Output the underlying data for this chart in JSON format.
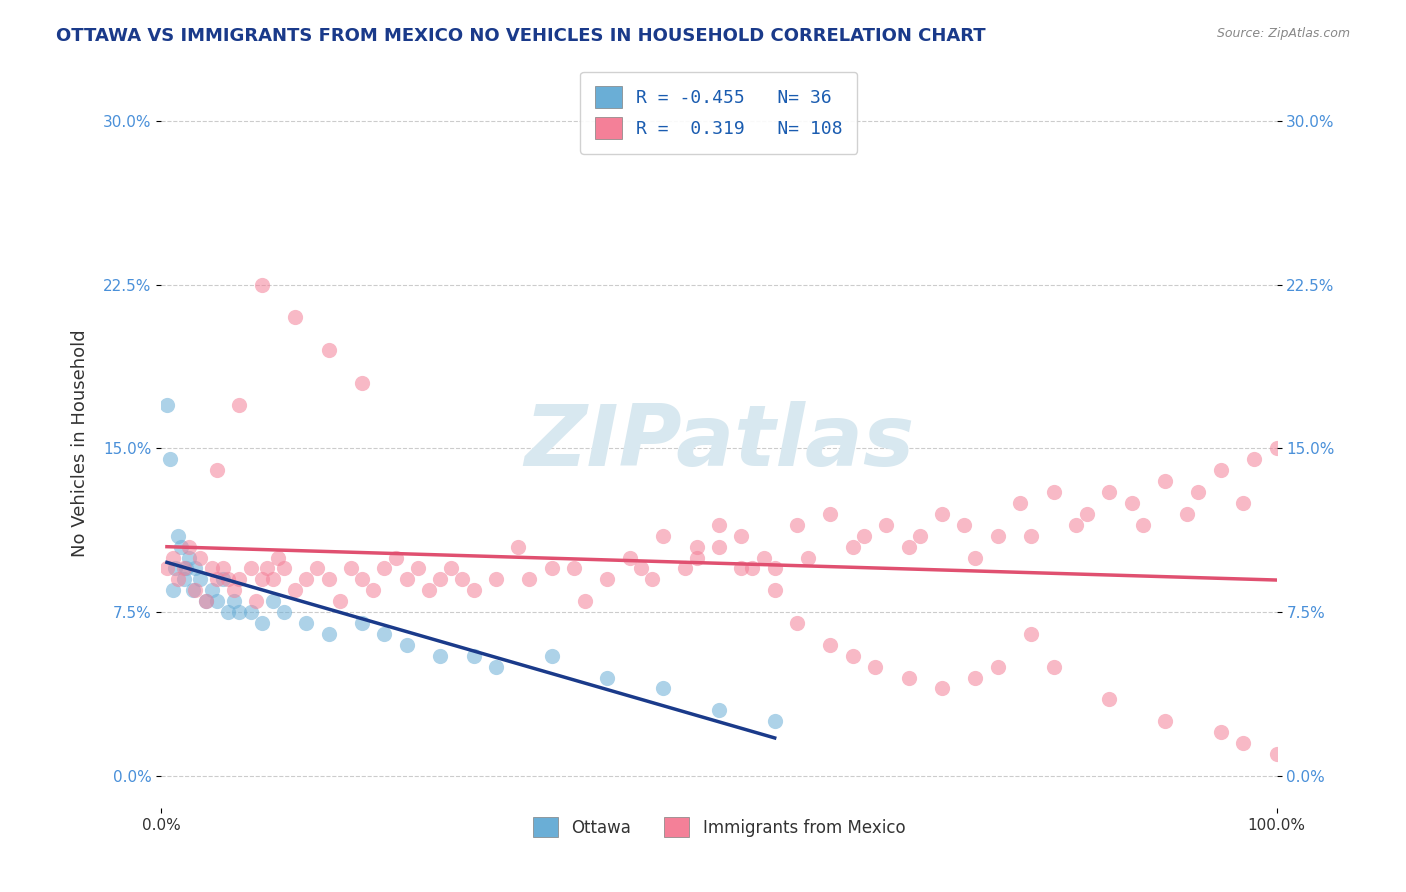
{
  "title": "OTTAWA VS IMMIGRANTS FROM MEXICO NO VEHICLES IN HOUSEHOLD CORRELATION CHART",
  "source": "Source: ZipAtlas.com",
  "xlabel_ticks": [
    "0.0%",
    "100.0%"
  ],
  "ylabel_label": "No Vehicles in Household",
  "ylabel_ticks": [
    0.0,
    7.5,
    15.0,
    22.5,
    30.0
  ],
  "xmin": 0.0,
  "xmax": 100.0,
  "ymin": -1.5,
  "ymax": 32.0,
  "legend_entries": [
    {
      "label": "Ottawa",
      "R": "-0.455",
      "N": "36",
      "color": "#a8c4e0"
    },
    {
      "label": "Immigrants from Mexico",
      "R": "0.319",
      "N": "108",
      "color": "#f4a0b0"
    }
  ],
  "watermark": "ZIPatlas",
  "watermark_color": "#d8e8f0",
  "background_color": "#ffffff",
  "gridline_color": "#cccccc",
  "scatter_alpha": 0.55,
  "scatter_size": 120,
  "ottawa_color": "#6aaed6",
  "mexico_color": "#f48098",
  "trendline_ottawa_color": "#1a3a8a",
  "trendline_mexico_color": "#e05070",
  "ottawa_x": [
    0.5,
    0.8,
    1.0,
    1.2,
    1.5,
    1.8,
    2.0,
    2.2,
    2.5,
    2.8,
    3.0,
    3.5,
    4.0,
    4.5,
    5.0,
    5.5,
    6.0,
    6.5,
    7.0,
    8.0,
    9.0,
    10.0,
    11.0,
    13.0,
    15.0,
    18.0,
    20.0,
    22.0,
    25.0,
    28.0,
    30.0,
    35.0,
    40.0,
    45.0,
    50.0,
    55.0
  ],
  "ottawa_y": [
    17.0,
    14.5,
    8.5,
    9.5,
    11.0,
    10.5,
    9.0,
    9.5,
    10.0,
    8.5,
    9.5,
    9.0,
    8.0,
    8.5,
    8.0,
    9.0,
    7.5,
    8.0,
    7.5,
    7.5,
    7.0,
    8.0,
    7.5,
    7.0,
    6.5,
    7.0,
    6.5,
    6.0,
    5.5,
    5.5,
    5.0,
    5.5,
    4.5,
    4.0,
    3.0,
    2.5
  ],
  "mexico_x": [
    0.5,
    1.0,
    1.5,
    2.0,
    2.5,
    3.0,
    3.5,
    4.0,
    4.5,
    5.0,
    5.5,
    6.0,
    6.5,
    7.0,
    8.0,
    8.5,
    9.0,
    9.5,
    10.0,
    10.5,
    11.0,
    12.0,
    13.0,
    14.0,
    15.0,
    16.0,
    17.0,
    18.0,
    19.0,
    20.0,
    21.0,
    22.0,
    23.0,
    24.0,
    25.0,
    26.0,
    27.0,
    28.0,
    30.0,
    32.0,
    33.0,
    35.0,
    37.0,
    38.0,
    40.0,
    42.0,
    43.0,
    44.0,
    45.0,
    47.0,
    48.0,
    50.0,
    52.0,
    53.0,
    54.0,
    55.0,
    57.0,
    58.0,
    60.0,
    62.0,
    63.0,
    65.0,
    67.0,
    68.0,
    70.0,
    72.0,
    73.0,
    75.0,
    77.0,
    78.0,
    80.0,
    82.0,
    83.0,
    85.0,
    87.0,
    88.0,
    90.0,
    92.0,
    93.0,
    95.0,
    97.0,
    98.0,
    100.0,
    48.0,
    50.0,
    52.0,
    55.0,
    57.0,
    60.0,
    62.0,
    64.0,
    67.0,
    70.0,
    73.0,
    75.0,
    78.0,
    80.0,
    85.0,
    90.0,
    95.0,
    97.0,
    100.0,
    5.0,
    7.0,
    9.0,
    12.0,
    15.0,
    18.0
  ],
  "mexico_y": [
    9.5,
    10.0,
    9.0,
    9.5,
    10.5,
    8.5,
    10.0,
    8.0,
    9.5,
    9.0,
    9.5,
    9.0,
    8.5,
    9.0,
    9.5,
    8.0,
    9.0,
    9.5,
    9.0,
    10.0,
    9.5,
    8.5,
    9.0,
    9.5,
    9.0,
    8.0,
    9.5,
    9.0,
    8.5,
    9.5,
    10.0,
    9.0,
    9.5,
    8.5,
    9.0,
    9.5,
    9.0,
    8.5,
    9.0,
    10.5,
    9.0,
    9.5,
    9.5,
    8.0,
    9.0,
    10.0,
    9.5,
    9.0,
    11.0,
    9.5,
    10.0,
    10.5,
    11.0,
    9.5,
    10.0,
    9.5,
    11.5,
    10.0,
    12.0,
    10.5,
    11.0,
    11.5,
    10.5,
    11.0,
    12.0,
    11.5,
    10.0,
    11.0,
    12.5,
    11.0,
    13.0,
    11.5,
    12.0,
    13.0,
    12.5,
    11.5,
    13.5,
    12.0,
    13.0,
    14.0,
    12.5,
    14.5,
    15.0,
    10.5,
    11.5,
    9.5,
    8.5,
    7.0,
    6.0,
    5.5,
    5.0,
    4.5,
    4.0,
    4.5,
    5.0,
    6.5,
    5.0,
    3.5,
    2.5,
    2.0,
    1.5,
    1.0,
    14.0,
    17.0,
    22.5,
    21.0,
    19.5,
    18.0
  ]
}
